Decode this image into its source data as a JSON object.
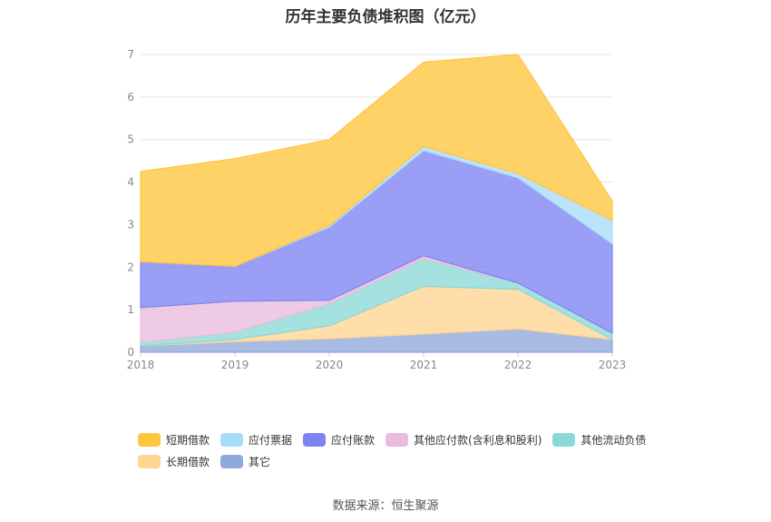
{
  "title": "历年主要负债堆积图（亿元）",
  "source": "数据来源：恒生聚源",
  "chart_data": {
    "type": "area",
    "stacked": true,
    "x": [
      "2018",
      "2019",
      "2020",
      "2021",
      "2022",
      "2023"
    ],
    "ylim": [
      0,
      7
    ],
    "yticks": [
      "0",
      "1",
      "2",
      "3",
      "4",
      "5",
      "6",
      "7"
    ],
    "grid": true,
    "legend_position": "bottom",
    "series": [
      {
        "name": "其它",
        "color": "#8FA9DB",
        "values": [
          0.15,
          0.25,
          0.32,
          0.43,
          0.55,
          0.3
        ]
      },
      {
        "name": "长期借款",
        "color": "#FFD591",
        "values": [
          0.0,
          0.05,
          0.3,
          1.12,
          0.93,
          0.0
        ]
      },
      {
        "name": "其他流动负债",
        "color": "#8AD9D6",
        "values": [
          0.08,
          0.17,
          0.52,
          0.65,
          0.15,
          0.15
        ]
      },
      {
        "name": "其他应付款(含利息和股利)",
        "color": "#EBBBDE",
        "values": [
          0.82,
          0.73,
          0.08,
          0.07,
          0.0,
          0.0
        ]
      },
      {
        "name": "应付账款",
        "color": "#7D83F2",
        "values": [
          1.08,
          0.82,
          1.72,
          2.47,
          2.47,
          2.1
        ]
      },
      {
        "name": "应付票据",
        "color": "#A8DCFA",
        "values": [
          0.0,
          0.0,
          0.04,
          0.1,
          0.1,
          0.55
        ]
      },
      {
        "name": "短期借款",
        "color": "#FFC53D",
        "values": [
          2.12,
          2.53,
          2.02,
          1.98,
          2.8,
          0.45
        ]
      }
    ]
  },
  "legend": {
    "rows": [
      [
        {
          "name": "短期借款",
          "color": "#FFC53D"
        },
        {
          "name": "应付票据",
          "color": "#A8DCFA"
        },
        {
          "name": "应付账款",
          "color": "#7D83F2"
        },
        {
          "name": "其他应付款(含利息和股利)",
          "color": "#EBBBDE"
        },
        {
          "name": "其他流动负债",
          "color": "#8AD9D6"
        }
      ],
      [
        {
          "name": "长期借款",
          "color": "#FFD591"
        },
        {
          "name": "其它",
          "color": "#8FA9DB"
        }
      ]
    ]
  }
}
